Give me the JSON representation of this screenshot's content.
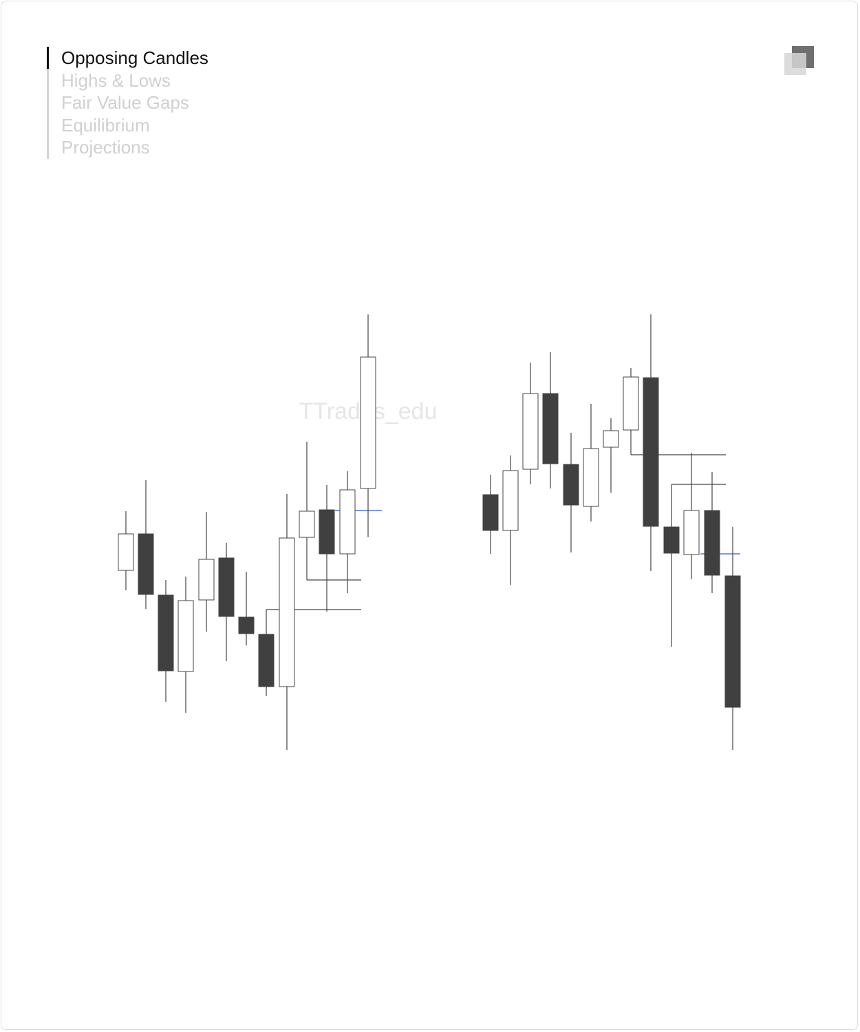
{
  "nav": {
    "items": [
      "Opposing Candles",
      "Highs & Lows",
      "Fair Value Gaps",
      "Equilibrium",
      "Projections"
    ],
    "active": 0
  },
  "watermark": "TTrades_edu"
}
